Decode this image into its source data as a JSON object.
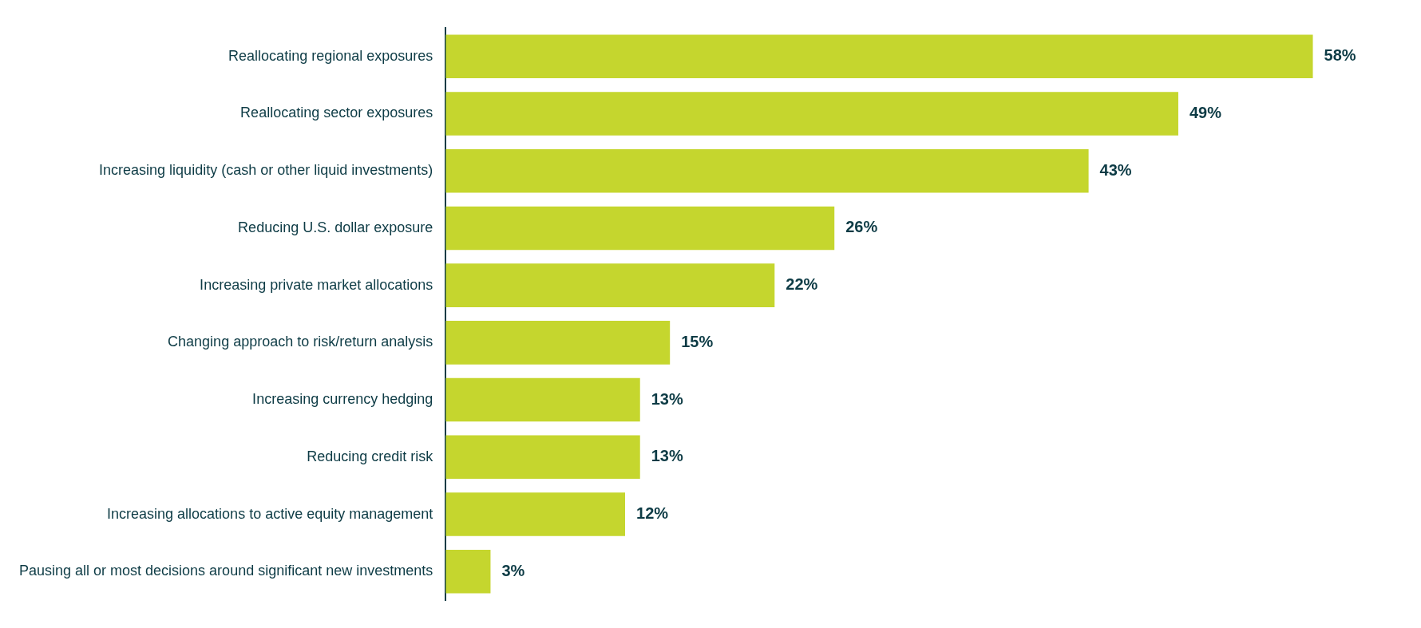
{
  "chart_data": {
    "type": "bar",
    "orientation": "horizontal",
    "categories": [
      "Reallocating regional exposures",
      "Reallocating sector exposures",
      "Increasing liquidity (cash or other liquid investments)",
      "Reducing U.S. dollar exposure",
      "Increasing private market allocations",
      "Changing approach to risk/return analysis",
      "Increasing currency hedging",
      "Reducing credit risk",
      "Increasing allocations to active equity management",
      "Pausing all or most decisions around significant new investments"
    ],
    "values": [
      58,
      49,
      43,
      26,
      22,
      15,
      13,
      13,
      12,
      3
    ],
    "value_labels": [
      "58%",
      "49%",
      "43%",
      "26%",
      "22%",
      "15%",
      "13%",
      "13%",
      "12%",
      "3%"
    ],
    "color": "#c5d62e",
    "tick_labels": "y",
    "legend": false
  }
}
